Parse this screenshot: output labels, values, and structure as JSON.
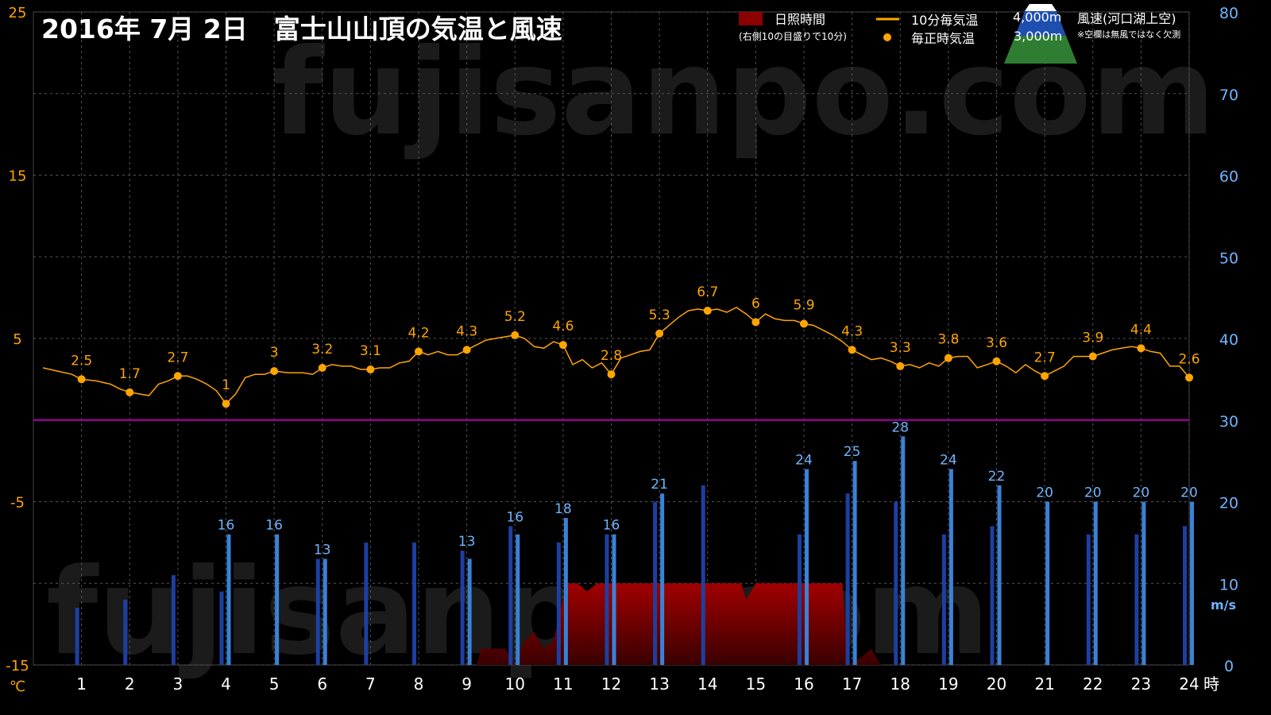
{
  "title": "2016年  7月  2日　富士山山頂の気温と風速",
  "watermark": "fujisanpo.com",
  "left_axis": {
    "unit": "℃",
    "ticks": [
      25,
      15,
      5,
      -5,
      -15
    ],
    "range": [
      -15,
      25
    ]
  },
  "right_axis": {
    "unit": "m/s",
    "ticks": [
      80,
      70,
      60,
      50,
      40,
      30,
      20,
      10,
      0
    ],
    "range": [
      0,
      80
    ]
  },
  "x_axis": {
    "unit": "時",
    "ticks": [
      "1",
      "2",
      "3",
      "4",
      "5",
      "6",
      "7",
      "8",
      "9",
      "10",
      "11",
      "12",
      "13",
      "14",
      "15",
      "16",
      "17",
      "18",
      "19",
      "20",
      "21",
      "22",
      "23",
      "24"
    ]
  },
  "legend": {
    "sunshine": "日照時間",
    "sunshine_note": "(右側10の目盛りで10分)",
    "temp10": "10分毎気温",
    "temp_hourly": "毎正時気温",
    "alt4000": "4,000m",
    "alt3000": "3,000m",
    "wind": "風速(河口湖上空)",
    "wind_note": "※空欄は無風ではなく欠測"
  },
  "colors": {
    "background": "#000000",
    "temperature": "#ffa500",
    "wind_4000": "#1e3fa0",
    "wind_3000": "#3a82d8",
    "wind_label": "#6fb4ff",
    "sunshine": "#8b0000",
    "zero_line": "#b000b0",
    "grid": "#555555"
  },
  "chart_data": {
    "type": "line",
    "hours": [
      1,
      2,
      3,
      4,
      5,
      6,
      7,
      8,
      9,
      10,
      11,
      12,
      13,
      14,
      15,
      16,
      17,
      18,
      19,
      20,
      21,
      22,
      23,
      24
    ],
    "temperature_hourly": [
      2.5,
      1.7,
      2.7,
      1,
      3,
      3.2,
      3.1,
      4.2,
      4.3,
      5.2,
      4.6,
      2.8,
      5.3,
      6.7,
      6,
      5.9,
      4.3,
      3.3,
      3.8,
      3.6,
      2.7,
      3.9,
      4.4,
      2.6
    ],
    "temperature_10min": [
      [
        0.2,
        3.2
      ],
      [
        0.5,
        3.0
      ],
      [
        0.8,
        2.8
      ],
      [
        1.0,
        2.5
      ],
      [
        1.3,
        2.4
      ],
      [
        1.6,
        2.2
      ],
      [
        1.8,
        1.9
      ],
      [
        2.0,
        1.7
      ],
      [
        2.2,
        1.6
      ],
      [
        2.4,
        1.5
      ],
      [
        2.6,
        2.2
      ],
      [
        2.8,
        2.4
      ],
      [
        3.0,
        2.7
      ],
      [
        3.2,
        2.7
      ],
      [
        3.4,
        2.5
      ],
      [
        3.6,
        2.2
      ],
      [
        3.8,
        1.8
      ],
      [
        4.0,
        1.0
      ],
      [
        4.2,
        1.6
      ],
      [
        4.4,
        2.6
      ],
      [
        4.6,
        2.8
      ],
      [
        4.8,
        2.8
      ],
      [
        5.0,
        3.0
      ],
      [
        5.3,
        2.9
      ],
      [
        5.6,
        2.9
      ],
      [
        5.8,
        2.8
      ],
      [
        6.0,
        3.2
      ],
      [
        6.2,
        3.4
      ],
      [
        6.4,
        3.3
      ],
      [
        6.6,
        3.3
      ],
      [
        6.8,
        3.1
      ],
      [
        7.0,
        3.1
      ],
      [
        7.2,
        3.2
      ],
      [
        7.4,
        3.2
      ],
      [
        7.6,
        3.5
      ],
      [
        7.8,
        3.6
      ],
      [
        8.0,
        4.2
      ],
      [
        8.2,
        4.0
      ],
      [
        8.4,
        4.2
      ],
      [
        8.6,
        4.0
      ],
      [
        8.8,
        4.0
      ],
      [
        9.0,
        4.3
      ],
      [
        9.2,
        4.6
      ],
      [
        9.4,
        4.9
      ],
      [
        9.6,
        5.0
      ],
      [
        9.8,
        5.1
      ],
      [
        10.0,
        5.2
      ],
      [
        10.2,
        5.0
      ],
      [
        10.4,
        4.5
      ],
      [
        10.6,
        4.4
      ],
      [
        10.8,
        4.8
      ],
      [
        11.0,
        4.6
      ],
      [
        11.2,
        3.4
      ],
      [
        11.4,
        3.7
      ],
      [
        11.6,
        3.2
      ],
      [
        11.8,
        3.5
      ],
      [
        12.0,
        2.8
      ],
      [
        12.2,
        3.8
      ],
      [
        12.4,
        4.0
      ],
      [
        12.6,
        4.2
      ],
      [
        12.8,
        4.3
      ],
      [
        13.0,
        5.3
      ],
      [
        13.2,
        5.8
      ],
      [
        13.4,
        6.3
      ],
      [
        13.6,
        6.7
      ],
      [
        13.8,
        6.8
      ],
      [
        14.0,
        6.7
      ],
      [
        14.2,
        6.8
      ],
      [
        14.4,
        6.6
      ],
      [
        14.6,
        6.9
      ],
      [
        14.8,
        6.5
      ],
      [
        15.0,
        6.0
      ],
      [
        15.2,
        6.5
      ],
      [
        15.4,
        6.2
      ],
      [
        15.6,
        6.1
      ],
      [
        15.8,
        6.1
      ],
      [
        16.0,
        5.9
      ],
      [
        16.2,
        5.8
      ],
      [
        16.4,
        5.5
      ],
      [
        16.6,
        5.2
      ],
      [
        16.8,
        4.8
      ],
      [
        17.0,
        4.3
      ],
      [
        17.2,
        4.0
      ],
      [
        17.4,
        3.7
      ],
      [
        17.6,
        3.8
      ],
      [
        17.8,
        3.6
      ],
      [
        18.0,
        3.3
      ],
      [
        18.2,
        3.4
      ],
      [
        18.4,
        3.2
      ],
      [
        18.6,
        3.5
      ],
      [
        18.8,
        3.3
      ],
      [
        19.0,
        3.8
      ],
      [
        19.2,
        3.9
      ],
      [
        19.4,
        3.9
      ],
      [
        19.6,
        3.2
      ],
      [
        19.8,
        3.4
      ],
      [
        20.0,
        3.6
      ],
      [
        20.2,
        3.3
      ],
      [
        20.4,
        2.9
      ],
      [
        20.6,
        3.4
      ],
      [
        20.8,
        3.0
      ],
      [
        21.0,
        2.7
      ],
      [
        21.2,
        3.0
      ],
      [
        21.4,
        3.3
      ],
      [
        21.6,
        3.9
      ],
      [
        21.8,
        3.9
      ],
      [
        22.0,
        3.9
      ],
      [
        22.2,
        4.1
      ],
      [
        22.4,
        4.3
      ],
      [
        22.6,
        4.4
      ],
      [
        22.8,
        4.5
      ],
      [
        23.0,
        4.4
      ],
      [
        23.2,
        4.2
      ],
      [
        23.4,
        4.1
      ],
      [
        23.6,
        3.3
      ],
      [
        23.8,
        3.3
      ],
      [
        24.0,
        2.6
      ]
    ],
    "wind_4000": [
      7,
      8,
      11,
      9,
      null,
      13,
      15,
      15,
      14,
      17,
      15,
      16,
      20,
      22,
      null,
      16,
      21,
      20,
      16,
      17,
      null,
      16,
      16,
      17
    ],
    "wind_3000": [
      null,
      null,
      null,
      16,
      16,
      13,
      null,
      null,
      13,
      16,
      18,
      16,
      21,
      null,
      null,
      24,
      25,
      28,
      24,
      22,
      20,
      20,
      20,
      20
    ],
    "wind_labels": [
      "",
      "",
      "",
      "16",
      "16",
      "13",
      "",
      "",
      "13",
      "16",
      "18",
      "16",
      "21",
      "",
      "",
      "24",
      "25",
      "28",
      "24",
      "22",
      "20",
      "20",
      "20",
      "20"
    ],
    "sunshine": [
      [
        9.0,
        0
      ],
      [
        9.2,
        0
      ],
      [
        9.3,
        2
      ],
      [
        9.8,
        2
      ],
      [
        10.0,
        0
      ],
      [
        10.2,
        3
      ],
      [
        10.4,
        4
      ],
      [
        10.6,
        2
      ],
      [
        10.8,
        3
      ],
      [
        11.0,
        8
      ],
      [
        11.1,
        10
      ],
      [
        11.3,
        10
      ],
      [
        11.5,
        9
      ],
      [
        11.7,
        10
      ],
      [
        12.0,
        10
      ],
      [
        12.4,
        10
      ],
      [
        12.7,
        10
      ],
      [
        13.0,
        10
      ],
      [
        13.5,
        10
      ],
      [
        14.0,
        10
      ],
      [
        14.4,
        10
      ],
      [
        14.7,
        10
      ],
      [
        14.8,
        8
      ],
      [
        15.0,
        10
      ],
      [
        15.3,
        10
      ],
      [
        15.7,
        10
      ],
      [
        16.0,
        10
      ],
      [
        16.5,
        10
      ],
      [
        16.8,
        10
      ],
      [
        16.9,
        0
      ],
      [
        17.2,
        1
      ],
      [
        17.4,
        2
      ],
      [
        17.6,
        0
      ],
      [
        17.8,
        0
      ]
    ],
    "xlabel": "時",
    "ylabel_left": "℃",
    "ylabel_right": "m/s",
    "ylim_left": [
      -15,
      25
    ],
    "ylim_right": [
      0,
      80
    ],
    "xlim": [
      0,
      24
    ],
    "grid": true,
    "legend_position": "top-right"
  }
}
